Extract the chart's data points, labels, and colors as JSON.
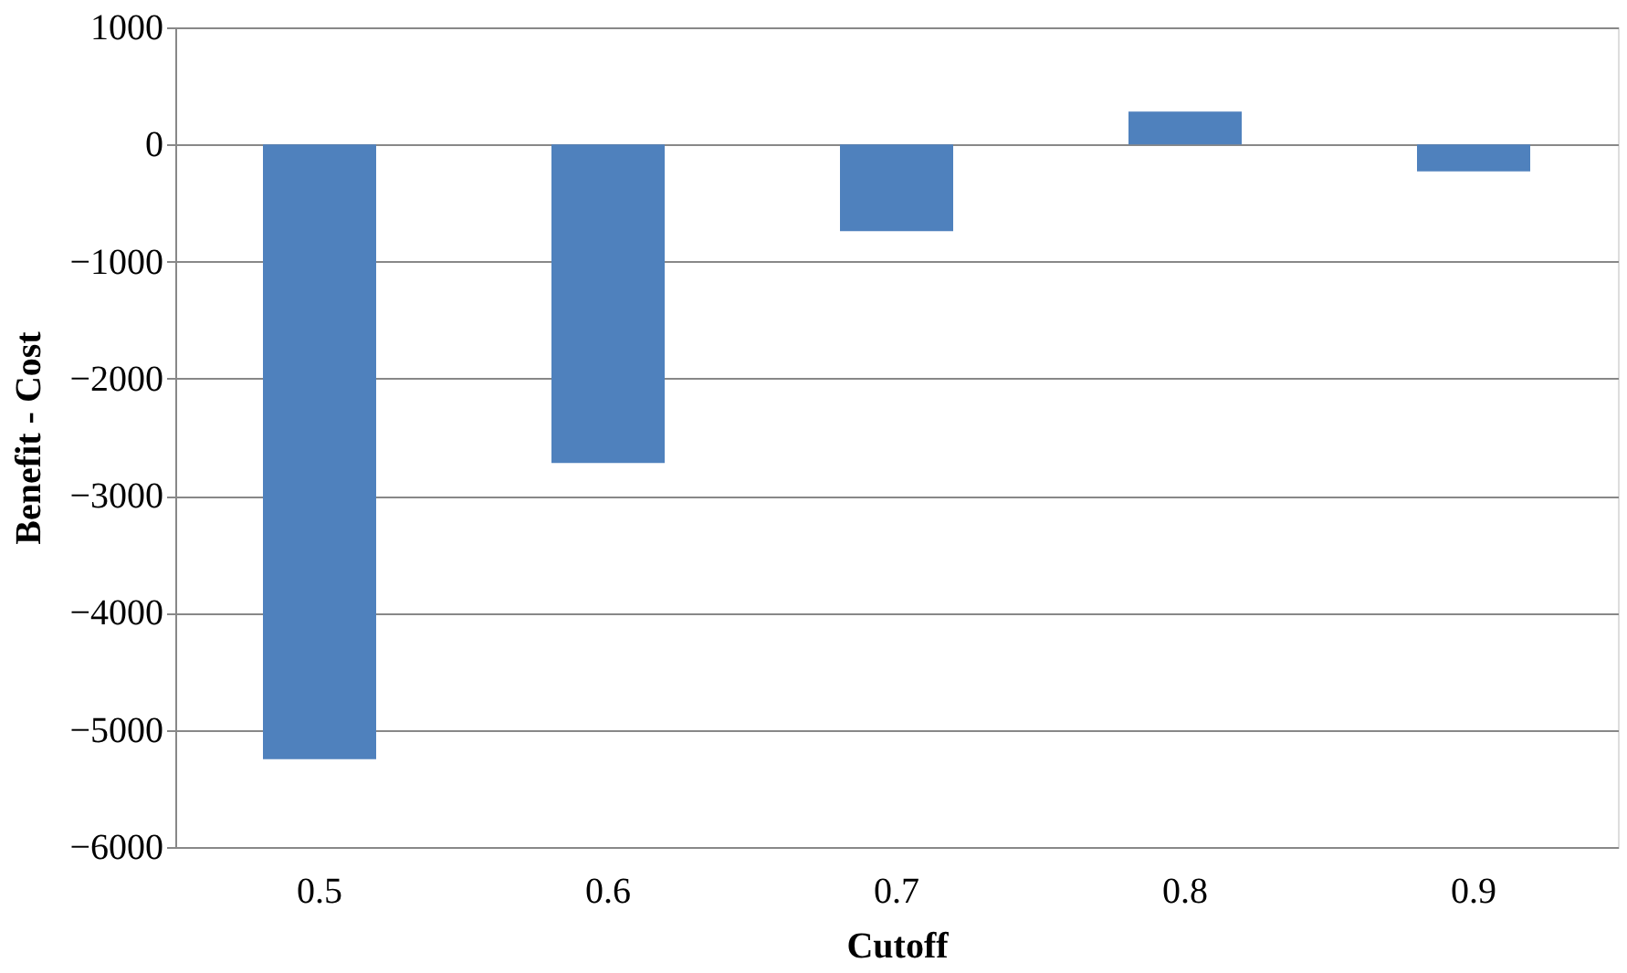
{
  "chart_data": {
    "type": "bar",
    "xlabel": "Cutoff",
    "ylabel": "Benefit - Cost",
    "categories": [
      "0.5",
      "0.6",
      "0.7",
      "0.8",
      "0.9"
    ],
    "values": [
      -5250,
      -2720,
      -740,
      280,
      -230
    ],
    "color": "#4f81bd",
    "ylim": [
      -6000,
      1000
    ],
    "yticks": [
      -6000,
      -5000,
      -4000,
      -3000,
      -2000,
      -1000,
      0,
      1000
    ],
    "grid": "y"
  }
}
